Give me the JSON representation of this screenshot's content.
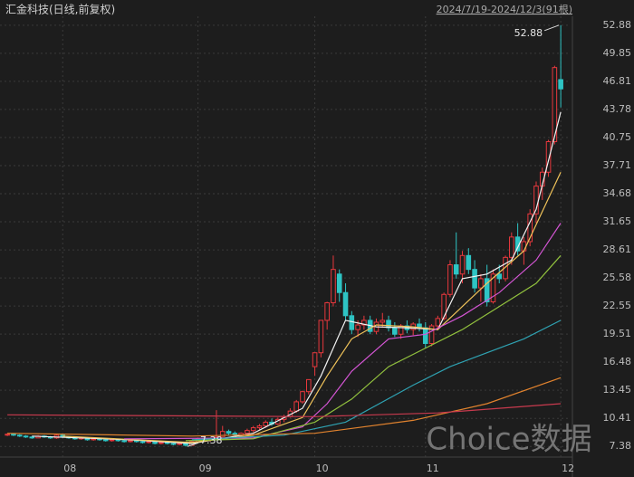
{
  "chart_data": {
    "type": "candlestick",
    "title": "汇金科技(日线,前复权)",
    "range_label": "2024/7/19-2024/12/3(91根)",
    "watermark": "Choice数据",
    "up_color": "#e8383d",
    "down_color": "#2ec4c4",
    "grid": true,
    "xlim": [
      -1.2,
      91.6
    ],
    "xticks": [
      {
        "value": 9,
        "label": "08"
      },
      {
        "value": 31,
        "label": "09"
      },
      {
        "value": 50,
        "label": "10"
      },
      {
        "value": 68,
        "label": "11"
      },
      {
        "value": 90,
        "label": "12"
      }
    ],
    "ylim": [
      6.23,
      53.84
    ],
    "yticks": [
      52.88,
      49.85,
      46.81,
      43.78,
      40.75,
      37.71,
      34.68,
      31.65,
      28.61,
      25.58,
      22.55,
      19.51,
      16.48,
      13.45,
      10.41,
      7.38
    ],
    "candles": [
      [
        8.6,
        8.8,
        8.5,
        8.7
      ],
      [
        8.7,
        8.8,
        8.5,
        8.6
      ],
      [
        8.6,
        8.7,
        8.4,
        8.5
      ],
      [
        8.5,
        8.6,
        8.3,
        8.4
      ],
      [
        8.4,
        8.5,
        8.2,
        8.3
      ],
      [
        8.3,
        8.6,
        8.3,
        8.5
      ],
      [
        8.5,
        8.6,
        8.3,
        8.4
      ],
      [
        8.4,
        8.5,
        8.2,
        8.3
      ],
      [
        8.3,
        8.7,
        8.2,
        8.6
      ],
      [
        8.6,
        8.7,
        8.3,
        8.4
      ],
      [
        8.4,
        8.5,
        8.2,
        8.3
      ],
      [
        8.3,
        8.4,
        8.1,
        8.2
      ],
      [
        8.2,
        8.4,
        8.1,
        8.3
      ],
      [
        8.3,
        8.4,
        8.0,
        8.1
      ],
      [
        8.1,
        8.3,
        8.0,
        8.2
      ],
      [
        8.2,
        8.3,
        8.0,
        8.1
      ],
      [
        8.1,
        8.2,
        7.9,
        8.0
      ],
      [
        8.0,
        8.2,
        7.9,
        8.1
      ],
      [
        8.1,
        8.2,
        7.9,
        8.0
      ],
      [
        8.0,
        8.1,
        7.8,
        7.9
      ],
      [
        7.9,
        8.1,
        7.8,
        8.0
      ],
      [
        8.0,
        8.1,
        7.8,
        7.9
      ],
      [
        7.9,
        8.0,
        7.7,
        7.8
      ],
      [
        7.8,
        8.0,
        7.7,
        7.9
      ],
      [
        7.9,
        8.0,
        7.6,
        7.7
      ],
      [
        7.7,
        7.9,
        7.6,
        7.8
      ],
      [
        7.8,
        7.9,
        7.6,
        7.7
      ],
      [
        7.7,
        7.8,
        7.5,
        7.6
      ],
      [
        7.6,
        7.8,
        7.5,
        7.7
      ],
      [
        7.7,
        7.8,
        7.38,
        7.5
      ],
      [
        7.5,
        8.0,
        7.5,
        7.9
      ],
      [
        7.9,
        8.3,
        7.8,
        8.2
      ],
      [
        8.2,
        8.4,
        8.0,
        8.1
      ],
      [
        8.1,
        8.3,
        7.9,
        8.2
      ],
      [
        8.2,
        11.3,
        8.1,
        8.4
      ],
      [
        8.4,
        9.6,
        8.3,
        9.0
      ],
      [
        9.0,
        9.2,
        8.6,
        8.8
      ],
      [
        8.8,
        9.0,
        8.5,
        8.6
      ],
      [
        8.6,
        8.9,
        8.4,
        8.8
      ],
      [
        8.8,
        9.3,
        8.6,
        9.1
      ],
      [
        9.1,
        9.6,
        8.9,
        9.4
      ],
      [
        9.4,
        9.8,
        9.2,
        9.6
      ],
      [
        9.6,
        10.2,
        9.4,
        10.0
      ],
      [
        10.0,
        10.4,
        9.6,
        9.8
      ],
      [
        9.8,
        10.5,
        9.7,
        10.3
      ],
      [
        10.3,
        10.8,
        10.0,
        10.6
      ],
      [
        10.6,
        11.5,
        10.5,
        11.2
      ],
      [
        11.2,
        12.4,
        11.0,
        12.2
      ],
      [
        12.2,
        13.4,
        12.0,
        13.3
      ],
      [
        13.3,
        14.6,
        13.0,
        14.6
      ],
      [
        16.0,
        17.5,
        15.0,
        17.5
      ],
      [
        17.5,
        21.0,
        17.0,
        21.0
      ],
      [
        21.0,
        23.0,
        20.0,
        22.9
      ],
      [
        22.9,
        28.0,
        22.5,
        26.5
      ],
      [
        26.0,
        26.5,
        23.0,
        24.0
      ],
      [
        24.0,
        25.0,
        21.0,
        21.5
      ],
      [
        21.5,
        22.0,
        19.5,
        20.0
      ],
      [
        20.0,
        21.0,
        19.2,
        20.5
      ],
      [
        20.5,
        21.5,
        20.0,
        21.0
      ],
      [
        21.0,
        21.5,
        19.5,
        19.8
      ],
      [
        19.8,
        21.2,
        19.5,
        20.8
      ],
      [
        20.8,
        21.8,
        20.2,
        21.0
      ],
      [
        21.0,
        21.5,
        19.8,
        20.2
      ],
      [
        20.2,
        20.8,
        19.2,
        19.5
      ],
      [
        19.5,
        20.6,
        19.0,
        20.4
      ],
      [
        20.4,
        21.0,
        19.6,
        20.0
      ],
      [
        20.0,
        20.8,
        19.4,
        20.6
      ],
      [
        20.6,
        21.2,
        19.8,
        20.2
      ],
      [
        20.2,
        20.8,
        18.0,
        18.5
      ],
      [
        18.5,
        20.6,
        18.2,
        20.4
      ],
      [
        20.4,
        21.5,
        20.0,
        21.2
      ],
      [
        21.2,
        24.0,
        21.0,
        23.8
      ],
      [
        23.8,
        27.5,
        23.5,
        27.0
      ],
      [
        27.0,
        30.5,
        25.5,
        26.0
      ],
      [
        26.0,
        28.5,
        25.0,
        28.0
      ],
      [
        28.0,
        28.8,
        26.0,
        26.5
      ],
      [
        26.5,
        27.5,
        24.0,
        24.5
      ],
      [
        24.5,
        26.0,
        23.0,
        25.5
      ],
      [
        25.5,
        27.0,
        22.5,
        23.0
      ],
      [
        23.0,
        26.5,
        22.8,
        26.0
      ],
      [
        26.0,
        27.0,
        25.0,
        25.5
      ],
      [
        25.5,
        28.0,
        25.2,
        27.8
      ],
      [
        27.8,
        30.5,
        27.0,
        30.0
      ],
      [
        30.0,
        31.5,
        28.0,
        28.5
      ],
      [
        28.5,
        30.0,
        27.0,
        29.5
      ],
      [
        29.5,
        33.0,
        29.0,
        32.5
      ],
      [
        32.5,
        36.0,
        31.5,
        35.5
      ],
      [
        35.5,
        37.5,
        34.0,
        37.0
      ],
      [
        37.0,
        40.5,
        36.5,
        40.3
      ],
      [
        40.3,
        48.5,
        40.0,
        48.3
      ],
      [
        47.0,
        52.88,
        44.0,
        46.0
      ]
    ],
    "high_label_index": 90,
    "low_label_index": 29,
    "lines": [
      {
        "color": "#f2f2f2",
        "x": [
          4,
          20,
          30,
          40,
          48,
          51,
          55,
          60,
          65,
          70,
          74,
          78,
          82,
          86,
          90
        ],
        "values": [
          8.5,
          8.1,
          7.7,
          8.8,
          11.5,
          15,
          21,
          20.3,
          20.2,
          20.0,
          25.5,
          26,
          27.5,
          33,
          43.5
        ]
      },
      {
        "color": "#f0c35a",
        "x": [
          9,
          30,
          40,
          48,
          52,
          56,
          60,
          66,
          70,
          74,
          78,
          84,
          90
        ],
        "values": [
          8.5,
          7.8,
          8.6,
          10.5,
          15,
          19,
          20.5,
          20.3,
          20.0,
          22.5,
          25,
          28.5,
          37
        ]
      },
      {
        "color": "#d455d4",
        "x": [
          19,
          40,
          48,
          52,
          56,
          62,
          68,
          74,
          80,
          86,
          90
        ],
        "values": [
          8.2,
          8.3,
          9.5,
          12,
          15.5,
          19,
          19.5,
          21.5,
          24,
          27.5,
          31.5
        ]
      },
      {
        "color": "#92c23e",
        "x": [
          29,
          40,
          50,
          56,
          62,
          68,
          74,
          80,
          86,
          90
        ],
        "values": [
          8.0,
          8.2,
          10,
          12.5,
          16,
          18,
          20,
          22.5,
          25,
          28
        ]
      },
      {
        "color": "#2fa3b3",
        "x": [
          30,
          45,
          55,
          66,
          72,
          78,
          84,
          90
        ],
        "values": [
          8.1,
          8.6,
          10,
          14,
          16,
          17.5,
          19,
          21
        ]
      },
      {
        "color": "#e2832e",
        "x": [
          0,
          30,
          50,
          66,
          78,
          90
        ],
        "values": [
          8.8,
          8.5,
          8.8,
          10.2,
          12,
          14.8
        ]
      },
      {
        "color": "#c83a4e",
        "x": [
          0,
          50,
          70,
          90
        ],
        "values": [
          10.8,
          10.6,
          11,
          12
        ]
      }
    ]
  }
}
